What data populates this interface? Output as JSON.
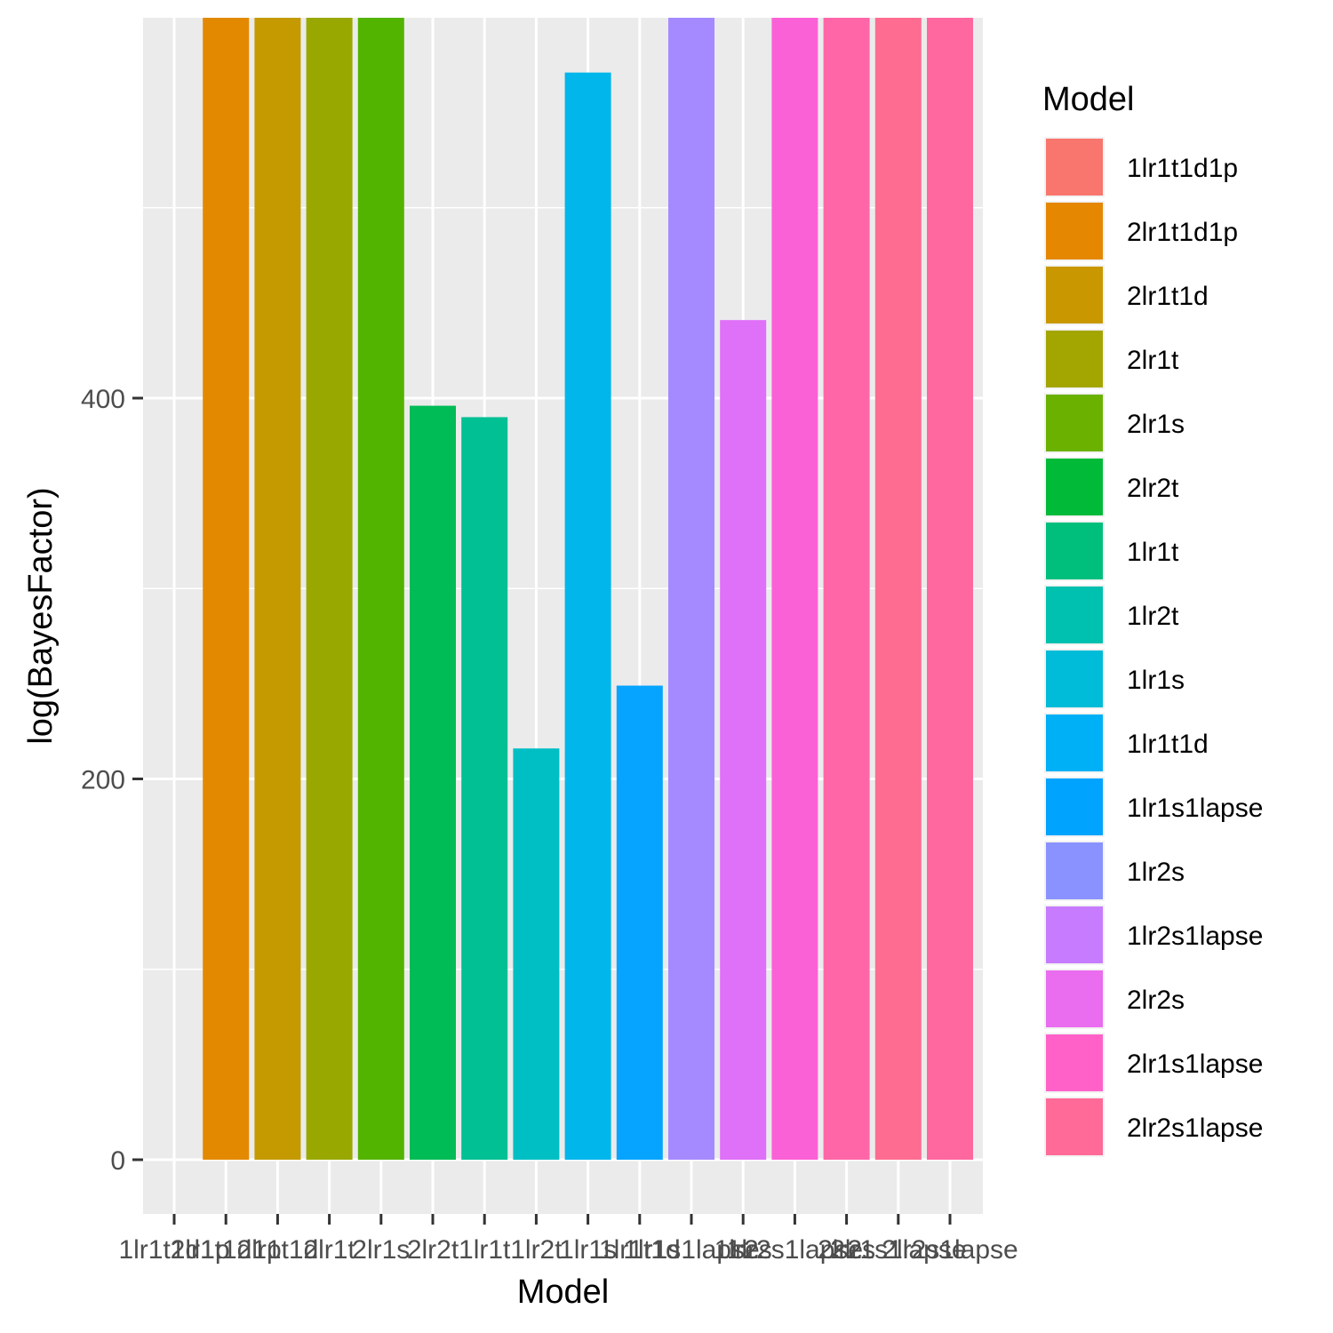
{
  "chart_data": {
    "type": "bar",
    "xlabel": "Model",
    "ylabel": "log(BayesFactor)",
    "legend_title": "Model",
    "legend_position": "right",
    "grid": true,
    "ylim": [
      -27,
      600
    ],
    "y_ticks": [
      0,
      200,
      400
    ],
    "categories": [
      "1lr1t1d1p",
      "2lr1t1d1p",
      "2lr1t1d",
      "2lr1t",
      "2lr1s",
      "2lr2t",
      "1lr1t",
      "1lr2t",
      "1lr1s",
      "1lr1t1d",
      "1lr1s1lapse",
      "1lr2s",
      "1lr2s1lapse",
      "2lr2s",
      "2lr1s1lapse",
      "2lr2s1lapse"
    ],
    "x_tick_labels": [
      "1lr1t1d1p",
      "2lr1t1d1p",
      "2lr1t1d",
      "2lr1t",
      "2lr1s",
      "2lr2t",
      "1lr1t",
      "1lr2t",
      "1lr1s",
      "1lr1t1d",
      "1lr1s1lapse",
      "1lr2s",
      "1lr2s1lapse",
      "2lr2s",
      "2lr1s1lapse",
      "2lr2s1lapse"
    ],
    "values": [
      0,
      600,
      600,
      600,
      600,
      396,
      390,
      216,
      571,
      249,
      600,
      441,
      600,
      600,
      600,
      600
    ],
    "colors": [
      "#F8766D",
      "#E38900",
      "#C49A00",
      "#99A800",
      "#53B400",
      "#00BC56",
      "#00C094",
      "#00BFC4",
      "#00B6EB",
      "#06A4FF",
      "#A58AFF",
      "#DF70F8",
      "#FB61D7",
      "#FF66A8",
      "#FF6C91",
      "#FF689F"
    ],
    "legend_colors": [
      "#F8766D",
      "#E58700",
      "#C99800",
      "#A3A500",
      "#6BB100",
      "#00BA38",
      "#00BF7D",
      "#00C0AF",
      "#00BCD8",
      "#00B0F6",
      "#00A4FF",
      "#8992FF",
      "#C77CFF",
      "#EA6CEF",
      "#FF61C9",
      "#FF6A98"
    ]
  }
}
